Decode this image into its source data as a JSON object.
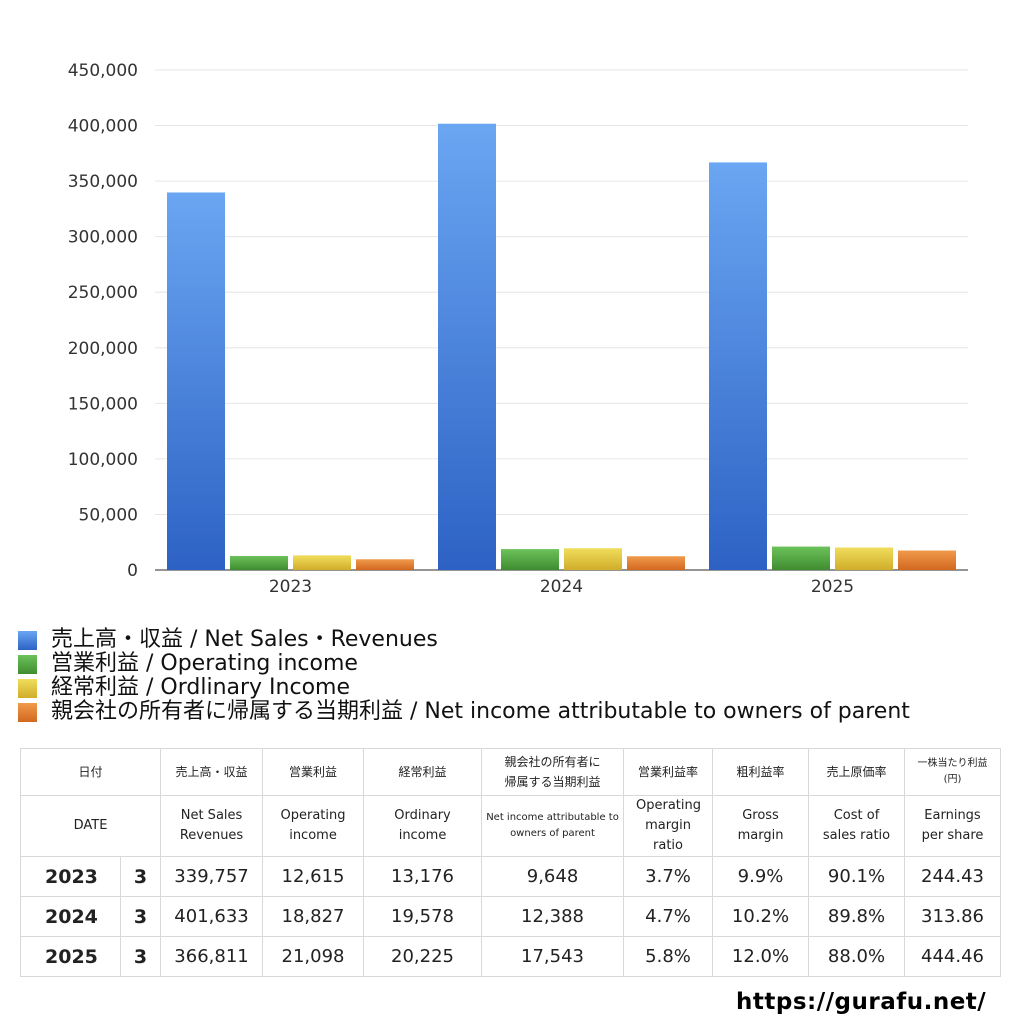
{
  "chart_data": {
    "type": "bar",
    "categories": [
      "2023",
      "2024",
      "2025"
    ],
    "series": [
      {
        "name": "売上高・収益 / Net Sales・Revenues",
        "values": [
          339757,
          401633,
          366811
        ],
        "color": "#3f7bd9"
      },
      {
        "name": "営業利益 / Operating income",
        "values": [
          12615,
          18827,
          21098
        ],
        "color": "#4c9e3c"
      },
      {
        "name": "経常利益 / Ordlinary Income",
        "values": [
          13176,
          19578,
          20225
        ],
        "color": "#e0c23a"
      },
      {
        "name": "親会社の所有者に帰属する当期利益 / Net income attributable to owners of parent",
        "values": [
          9648,
          12388,
          17543
        ],
        "color": "#de7a2c"
      }
    ],
    "ylim": [
      0,
      450000
    ],
    "yticks": [
      0,
      50000,
      100000,
      150000,
      200000,
      250000,
      300000,
      350000,
      400000,
      450000
    ],
    "ytick_labels": [
      "0",
      "50,000",
      "100,000",
      "150,000",
      "200,000",
      "250,000",
      "300,000",
      "350,000",
      "400,000",
      "450,000"
    ],
    "grid": true,
    "legend_position": "bottom"
  },
  "table": {
    "header_jp": {
      "date": "日付",
      "cols": [
        "売上高・収益",
        "営業利益",
        "経常利益",
        "親会社の所有者に帰属する当期利益",
        "営業利益率",
        "粗利益率",
        "売上原価率",
        "一株当たり利益 (円)"
      ]
    },
    "header_en": {
      "date": "DATE",
      "cols": [
        "Net Sales Revenues",
        "Operating income",
        "Ordinary income",
        "Net income attributable to owners of parent",
        "Operating margin ratio",
        "Gross margin",
        "Cost of sales ratio",
        "Earnings per share"
      ]
    },
    "rows": [
      {
        "year": "2023",
        "month": "3",
        "values": [
          "339,757",
          "12,615",
          "13,176",
          "9,648",
          "3.7%",
          "9.9%",
          "90.1%",
          "244.43"
        ]
      },
      {
        "year": "2024",
        "month": "3",
        "values": [
          "401,633",
          "18,827",
          "19,578",
          "12,388",
          "4.7%",
          "10.2%",
          "89.8%",
          "313.86"
        ]
      },
      {
        "year": "2025",
        "month": "3",
        "values": [
          "366,811",
          "21,098",
          "20,225",
          "17,543",
          "5.8%",
          "12.0%",
          "88.0%",
          "444.46"
        ]
      }
    ]
  },
  "footer": {
    "url": "https://gurafu.net/"
  }
}
